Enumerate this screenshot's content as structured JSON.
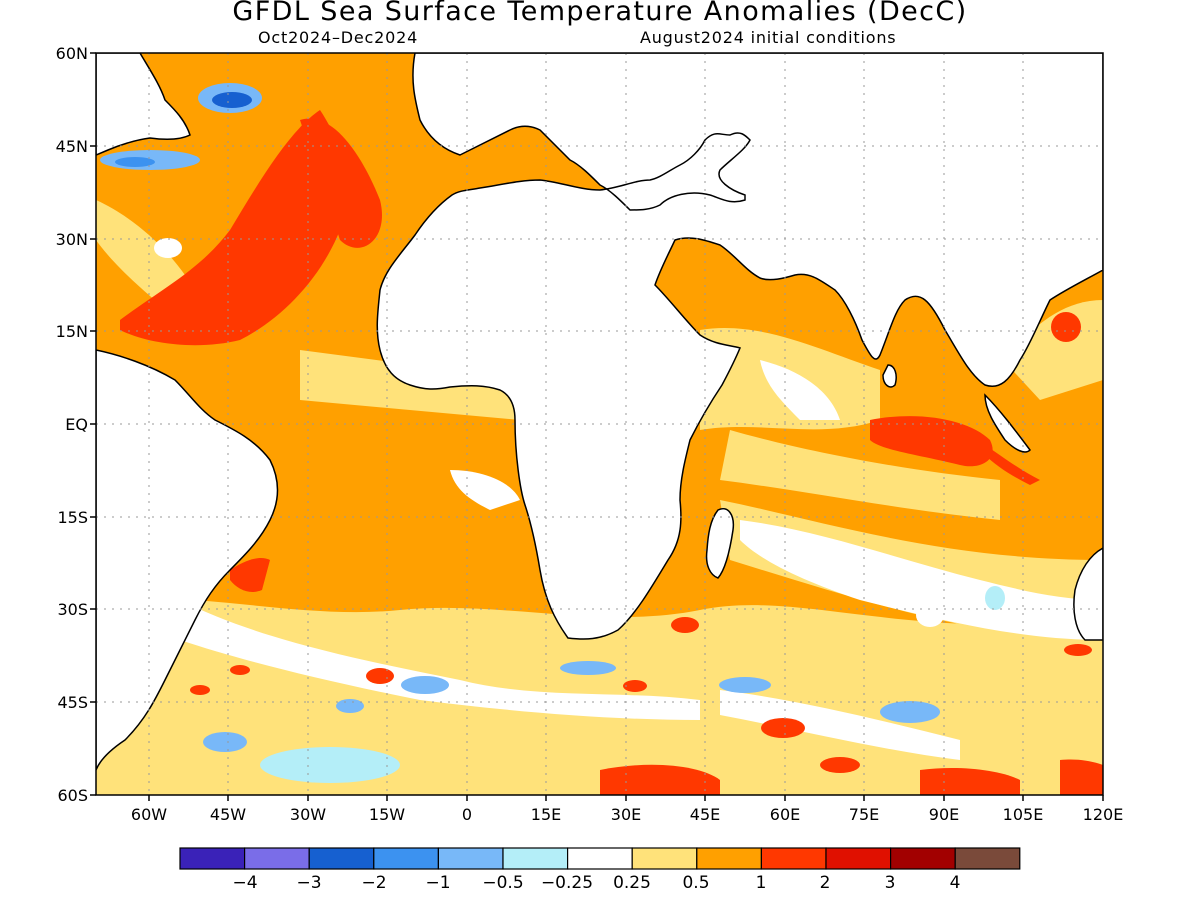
{
  "map": {
    "title": "GFDL Sea Surface Temperature Anomalies (DecC)",
    "period": "Oct2024–Dec2024",
    "init": "August2024 initial conditions",
    "lat_labels": [
      "60N",
      "45N",
      "30N",
      "15N",
      "EQ",
      "15S",
      "30S",
      "45S",
      "60S"
    ],
    "lon_labels": [
      "60W",
      "45W",
      "30W",
      "15W",
      "0",
      "15E",
      "30E",
      "45E",
      "60E",
      "75E",
      "90E",
      "105E",
      "120E"
    ],
    "lon_range": [
      -70,
      120
    ],
    "lat_range": [
      -60,
      60
    ]
  },
  "colorbar": {
    "colors": [
      "#3a22b8",
      "#7a6de8",
      "#1660d0",
      "#3c92f0",
      "#78b8f8",
      "#b4eef8",
      "#ffffff",
      "#ffe27a",
      "#ffa000",
      "#ff3800",
      "#e01000",
      "#a20000",
      "#7a4a3a"
    ],
    "labels": [
      "−4",
      "−3",
      "−2",
      "−1",
      "−0.5",
      "−0.25",
      "0.25",
      "0.5",
      "1",
      "2",
      "3",
      "4"
    ]
  }
}
